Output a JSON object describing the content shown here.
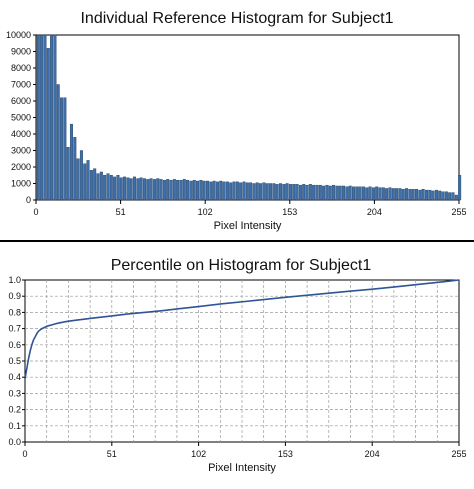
{
  "chart_data": [
    {
      "type": "bar",
      "title": "Individual Reference Histogram for Subject1",
      "xlabel": "Pixel Intensity",
      "ylabel": "",
      "xlim": [
        0,
        255
      ],
      "ylim": [
        0,
        10000
      ],
      "xticks": [
        "0",
        "51",
        "102",
        "153",
        "204",
        "255"
      ],
      "yticks": [
        "0",
        "1000",
        "2000",
        "3000",
        "4000",
        "5000",
        "6000",
        "7000",
        "8000",
        "9000",
        "10000"
      ],
      "grid": false,
      "bar_color": "#3f6fa6",
      "x": [
        0,
        2,
        4,
        6,
        8,
        10,
        12,
        14,
        16,
        18,
        20,
        22,
        24,
        26,
        28,
        30,
        32,
        34,
        36,
        38,
        40,
        42,
        44,
        46,
        48,
        50,
        52,
        54,
        56,
        58,
        60,
        62,
        64,
        66,
        68,
        70,
        72,
        74,
        76,
        78,
        80,
        82,
        84,
        86,
        88,
        90,
        92,
        94,
        96,
        98,
        100,
        102,
        104,
        106,
        108,
        110,
        112,
        114,
        116,
        118,
        120,
        122,
        124,
        126,
        128,
        130,
        132,
        134,
        136,
        138,
        140,
        142,
        144,
        146,
        148,
        150,
        152,
        154,
        156,
        158,
        160,
        162,
        164,
        166,
        168,
        170,
        172,
        174,
        176,
        178,
        180,
        182,
        184,
        186,
        188,
        190,
        192,
        194,
        196,
        198,
        200,
        202,
        204,
        206,
        208,
        210,
        212,
        214,
        216,
        218,
        220,
        222,
        224,
        226,
        228,
        230,
        232,
        234,
        236,
        238,
        240,
        242,
        244,
        246,
        248,
        250,
        252,
        254
      ],
      "values": [
        10000,
        10000,
        10000,
        9200,
        10000,
        10000,
        7000,
        6200,
        6200,
        3200,
        4600,
        3800,
        2500,
        3000,
        2200,
        2400,
        1800,
        1900,
        1600,
        1700,
        1500,
        1600,
        1500,
        1400,
        1500,
        1350,
        1400,
        1350,
        1300,
        1400,
        1300,
        1350,
        1300,
        1250,
        1300,
        1250,
        1300,
        1250,
        1200,
        1250,
        1200,
        1250,
        1200,
        1200,
        1250,
        1200,
        1150,
        1200,
        1150,
        1200,
        1150,
        1150,
        1100,
        1150,
        1100,
        1150,
        1100,
        1100,
        1050,
        1100,
        1100,
        1050,
        1100,
        1050,
        1050,
        1000,
        1050,
        1000,
        1050,
        1000,
        1000,
        1000,
        950,
        1000,
        950,
        1000,
        950,
        950,
        950,
        900,
        950,
        900,
        950,
        900,
        900,
        900,
        850,
        900,
        850,
        900,
        850,
        850,
        850,
        800,
        850,
        800,
        800,
        800,
        800,
        750,
        800,
        750,
        800,
        750,
        750,
        700,
        750,
        700,
        700,
        700,
        650,
        700,
        650,
        650,
        650,
        600,
        650,
        600,
        600,
        550,
        600,
        550,
        500,
        500,
        450,
        450,
        300,
        1500
      ]
    },
    {
      "type": "line",
      "title": "Percentile on Histogram for Subject1",
      "xlabel": "Pixel Intensity",
      "ylabel": "",
      "xlim": [
        0,
        255
      ],
      "ylim": [
        0,
        1
      ],
      "xticks": [
        "0",
        "51",
        "102",
        "153",
        "204",
        "255"
      ],
      "yticks": [
        "0.0",
        "0.1",
        "0.2",
        "0.3",
        "0.4",
        "0.5",
        "0.6",
        "0.7",
        "0.8",
        "0.9",
        "1.0"
      ],
      "grid": true,
      "line_color": "#2f5597",
      "x": [
        0,
        1,
        2,
        3,
        4,
        5,
        6,
        7,
        8,
        10,
        12,
        14,
        16,
        18,
        20,
        25,
        30,
        40,
        51,
        60,
        70,
        80,
        90,
        102,
        115,
        130,
        153,
        170,
        190,
        204,
        220,
        235,
        245,
        255
      ],
      "values": [
        0.39,
        0.45,
        0.51,
        0.56,
        0.6,
        0.63,
        0.65,
        0.67,
        0.685,
        0.7,
        0.71,
        0.718,
        0.724,
        0.73,
        0.735,
        0.745,
        0.752,
        0.765,
        0.778,
        0.79,
        0.8,
        0.81,
        0.822,
        0.836,
        0.852,
        0.868,
        0.893,
        0.91,
        0.93,
        0.943,
        0.96,
        0.977,
        0.988,
        1.0
      ]
    }
  ]
}
